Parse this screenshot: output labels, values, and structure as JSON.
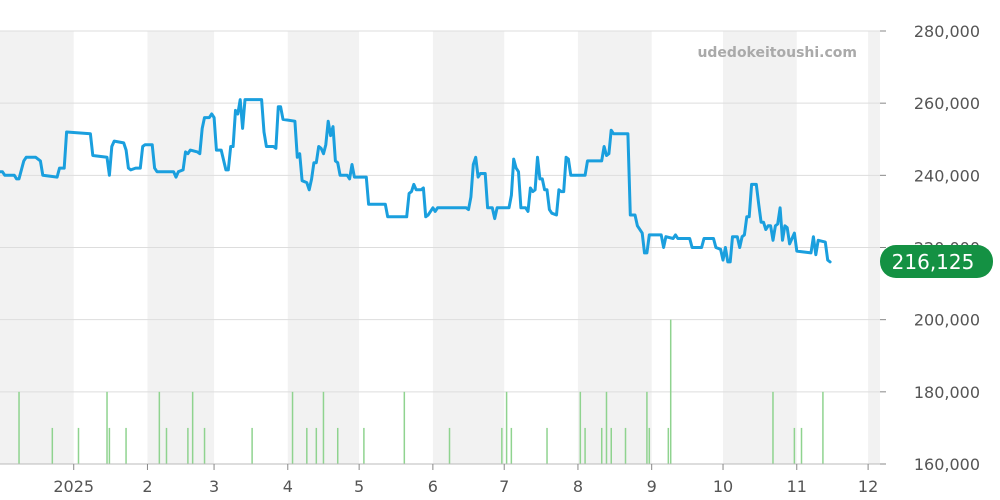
{
  "chart_data": {
    "type": "line",
    "watermark": "udedokeitoushi.com",
    "current_price_label": "216,125",
    "y_ticks": [
      "280,000",
      "260,000",
      "240,000",
      "220,000",
      "200,000",
      "180,000",
      "160,000"
    ],
    "y_tick_values": [
      280000,
      260000,
      240000,
      220000,
      200000,
      180000,
      160000
    ],
    "ylim": [
      160000,
      280000
    ],
    "x_ticks": [
      "2025",
      "2",
      "3",
      "4",
      "5",
      "6",
      "7",
      "8",
      "9",
      "10",
      "11",
      "12"
    ],
    "x_tick_days": [
      31,
      62,
      90,
      121,
      151,
      182,
      212,
      243,
      274,
      304,
      335,
      365
    ],
    "xlim": [
      0,
      370
    ],
    "grid": "horizontal",
    "y_axis_position": "right",
    "shaded_month_bands": [
      [
        0,
        31
      ],
      [
        62,
        90
      ],
      [
        121,
        151
      ],
      [
        182,
        212
      ],
      [
        243,
        274
      ],
      [
        304,
        335
      ],
      [
        365,
        370
      ]
    ],
    "colors": {
      "line": "#1a9fde",
      "volume": "#8fd38f",
      "band": "#f2f2f2",
      "grid": "#dddddd",
      "badge": "#149143"
    },
    "series": [
      {
        "values": [
          [
            0,
            241000
          ],
          [
            1,
            241000
          ],
          [
            2,
            240000
          ],
          [
            6,
            240000
          ],
          [
            7,
            239000
          ],
          [
            8,
            239000
          ],
          [
            10,
            244000
          ],
          [
            11,
            245000
          ],
          [
            15,
            245000
          ],
          [
            17,
            244000
          ],
          [
            18,
            240000
          ],
          [
            24,
            239500
          ],
          [
            25,
            242000
          ],
          [
            27,
            242000
          ],
          [
            28,
            252000
          ],
          [
            38,
            251500
          ],
          [
            39,
            245500
          ],
          [
            45,
            245000
          ],
          [
            46,
            240000
          ],
          [
            47,
            248000
          ],
          [
            48,
            249500
          ],
          [
            52,
            249000
          ],
          [
            53,
            247000
          ],
          [
            54,
            242000
          ],
          [
            55,
            241500
          ],
          [
            57,
            242000
          ],
          [
            59,
            242000
          ],
          [
            60,
            248000
          ],
          [
            61,
            248500
          ],
          [
            64,
            248500
          ],
          [
            65,
            242000
          ],
          [
            66,
            241000
          ],
          [
            73,
            241000
          ],
          [
            74,
            239500
          ],
          [
            75,
            241000
          ],
          [
            77,
            241500
          ],
          [
            78,
            246500
          ],
          [
            79,
            246000
          ],
          [
            80,
            247000
          ],
          [
            83,
            246500
          ],
          [
            84,
            246000
          ],
          [
            85,
            253000
          ],
          [
            86,
            256000
          ],
          [
            88,
            256000
          ],
          [
            89,
            257000
          ],
          [
            90,
            256000
          ],
          [
            91,
            247000
          ],
          [
            93,
            247000
          ],
          [
            95,
            241500
          ],
          [
            96,
            241500
          ],
          [
            97,
            248000
          ],
          [
            98,
            248000
          ],
          [
            99,
            258000
          ],
          [
            100,
            257000
          ],
          [
            101,
            261000
          ],
          [
            102,
            253000
          ],
          [
            103,
            261000
          ],
          [
            110,
            261000
          ],
          [
            111,
            252000
          ],
          [
            112,
            248000
          ],
          [
            115,
            248000
          ],
          [
            116,
            247500
          ],
          [
            117,
            259000
          ],
          [
            118,
            259000
          ],
          [
            119,
            255500
          ],
          [
            124,
            255000
          ],
          [
            125,
            245000
          ],
          [
            126,
            246000
          ],
          [
            127,
            238500
          ],
          [
            129,
            238000
          ],
          [
            130,
            236000
          ],
          [
            131,
            239000
          ],
          [
            132,
            243500
          ],
          [
            133,
            243500
          ],
          [
            134,
            248000
          ],
          [
            135,
            247500
          ],
          [
            136,
            246000
          ],
          [
            137,
            248500
          ],
          [
            138,
            255000
          ],
          [
            139,
            251000
          ],
          [
            140,
            253500
          ],
          [
            141,
            244000
          ],
          [
            142,
            243500
          ],
          [
            143,
            240000
          ],
          [
            146,
            240000
          ],
          [
            147,
            239000
          ],
          [
            148,
            243000
          ],
          [
            149,
            239500
          ],
          [
            154,
            239500
          ],
          [
            155,
            232000
          ],
          [
            162,
            232000
          ],
          [
            163,
            228500
          ],
          [
            164,
            228500
          ],
          [
            171,
            228500
          ],
          [
            172,
            235000
          ],
          [
            173,
            235500
          ],
          [
            174,
            237500
          ],
          [
            175,
            236000
          ],
          [
            177,
            236000
          ],
          [
            178,
            236500
          ],
          [
            179,
            228500
          ],
          [
            180,
            229000
          ],
          [
            181,
            230000
          ],
          [
            182,
            231000
          ],
          [
            183,
            230000
          ],
          [
            184,
            231000
          ],
          [
            196,
            231000
          ],
          [
            197,
            230500
          ],
          [
            198,
            234000
          ],
          [
            199,
            243000
          ],
          [
            200,
            245000
          ],
          [
            201,
            239500
          ],
          [
            202,
            240500
          ],
          [
            204,
            240500
          ],
          [
            205,
            231000
          ],
          [
            207,
            231000
          ],
          [
            208,
            228000
          ],
          [
            209,
            231000
          ],
          [
            214,
            231000
          ],
          [
            215,
            234500
          ],
          [
            216,
            244500
          ],
          [
            217,
            242000
          ],
          [
            218,
            241000
          ],
          [
            219,
            231000
          ],
          [
            221,
            231000
          ],
          [
            222,
            230000
          ],
          [
            223,
            236500
          ],
          [
            224,
            235500
          ],
          [
            225,
            236000
          ],
          [
            226,
            245000
          ],
          [
            227,
            239000
          ],
          [
            228,
            239000
          ],
          [
            229,
            236000
          ],
          [
            230,
            236000
          ],
          [
            231,
            230500
          ],
          [
            232,
            229500
          ],
          [
            234,
            229000
          ],
          [
            235,
            236000
          ],
          [
            236,
            235500
          ],
          [
            237,
            235500
          ],
          [
            238,
            245000
          ],
          [
            239,
            244500
          ],
          [
            240,
            240000
          ],
          [
            246,
            240000
          ],
          [
            247,
            244000
          ],
          [
            253,
            244000
          ],
          [
            254,
            248000
          ],
          [
            255,
            245500
          ],
          [
            256,
            246000
          ],
          [
            257,
            252500
          ],
          [
            258,
            251500
          ],
          [
            264,
            251500
          ],
          [
            265,
            229000
          ],
          [
            267,
            229000
          ],
          [
            268,
            226000
          ],
          [
            270,
            224000
          ],
          [
            271,
            218500
          ],
          [
            272,
            218500
          ],
          [
            273,
            223500
          ],
          [
            278,
            223500
          ],
          [
            279,
            220000
          ],
          [
            280,
            223000
          ],
          [
            283,
            222500
          ],
          [
            284,
            223500
          ],
          [
            285,
            222500
          ],
          [
            290,
            222500
          ],
          [
            291,
            220000
          ],
          [
            295,
            220000
          ],
          [
            296,
            222500
          ],
          [
            300,
            222500
          ],
          [
            301,
            220000
          ],
          [
            303,
            219500
          ],
          [
            304,
            216500
          ],
          [
            305,
            220000
          ],
          [
            306,
            216000
          ],
          [
            307,
            216000
          ],
          [
            308,
            223000
          ],
          [
            310,
            223000
          ],
          [
            311,
            220000
          ],
          [
            312,
            223000
          ],
          [
            313,
            223500
          ],
          [
            314,
            228500
          ],
          [
            315,
            228500
          ],
          [
            316,
            237500
          ],
          [
            318,
            237500
          ],
          [
            319,
            232000
          ],
          [
            320,
            227000
          ],
          [
            321,
            227000
          ],
          [
            322,
            225000
          ],
          [
            323,
            226000
          ],
          [
            324,
            226000
          ],
          [
            325,
            222000
          ],
          [
            326,
            226000
          ],
          [
            327,
            226500
          ],
          [
            328,
            231000
          ],
          [
            329,
            222000
          ],
          [
            330,
            226000
          ],
          [
            331,
            225500
          ],
          [
            332,
            221000
          ],
          [
            333,
            222500
          ],
          [
            334,
            224000
          ],
          [
            335,
            219000
          ],
          [
            341,
            218500
          ],
          [
            342,
            223000
          ],
          [
            343,
            218000
          ],
          [
            344,
            222000
          ],
          [
            347,
            221500
          ],
          [
            348,
            216500
          ],
          [
            349,
            216000
          ]
        ]
      }
    ],
    "volume_days": [
      8,
      22,
      33,
      45,
      46,
      53,
      67,
      70,
      79,
      81,
      86,
      106,
      123,
      129,
      133,
      136,
      142,
      153,
      170,
      189,
      211,
      213,
      215,
      230,
      244,
      246,
      253,
      255,
      257,
      263,
      272,
      273,
      281,
      325,
      334,
      337,
      346
    ],
    "volume_spikes": [
      [
        282,
        200000
      ]
    ]
  }
}
